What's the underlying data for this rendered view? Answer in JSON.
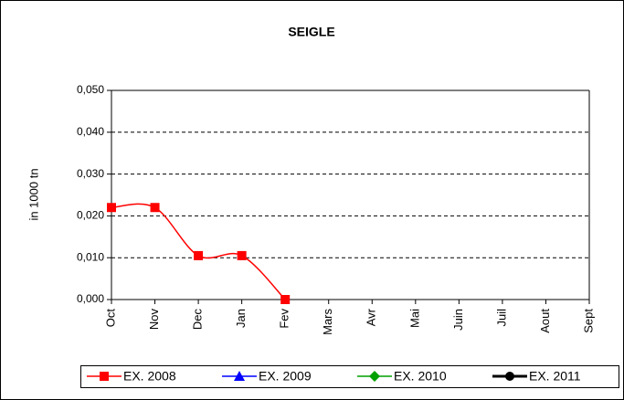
{
  "chart_data": {
    "type": "line",
    "title": "SEIGLE",
    "y_label": "in 1000 tn",
    "categories": [
      "Oct",
      "Nov",
      "Dec",
      "Jan",
      "Fev",
      "Mars",
      "Avr",
      "Mai",
      "Juin",
      "Juil",
      "Aout",
      "Sept"
    ],
    "series": [
      {
        "name": "EX. 2008",
        "color": "#ff0000",
        "marker": "square",
        "values": [
          0.022,
          0.022,
          0.0105,
          0.0105,
          0,
          null,
          null,
          null,
          null,
          null,
          null,
          null
        ]
      },
      {
        "name": "EX. 2009",
        "color": "#0000ff",
        "marker": "triangle",
        "values": [
          null,
          null,
          null,
          null,
          null,
          null,
          null,
          null,
          null,
          null,
          null,
          null
        ]
      },
      {
        "name": "EX. 2010",
        "color": "#00a000",
        "marker": "diamond",
        "values": [
          null,
          null,
          null,
          null,
          null,
          null,
          null,
          null,
          null,
          null,
          null,
          null
        ]
      },
      {
        "name": "EX. 2011",
        "color": "#000000",
        "marker": "circle",
        "values": [
          null,
          null,
          null,
          null,
          null,
          null,
          null,
          null,
          null,
          null,
          null,
          null
        ]
      }
    ],
    "ylim": [
      0,
      0.05
    ],
    "yticks": [
      {
        "value": 0,
        "label": "0,000"
      },
      {
        "value": 0.01,
        "label": "0,010"
      },
      {
        "value": 0.02,
        "label": "0,020"
      },
      {
        "value": 0.03,
        "label": "0,030"
      },
      {
        "value": 0.04,
        "label": "0,040"
      },
      {
        "value": 0.05,
        "label": "0,050"
      }
    ],
    "grid": true,
    "legend": "bottom"
  }
}
